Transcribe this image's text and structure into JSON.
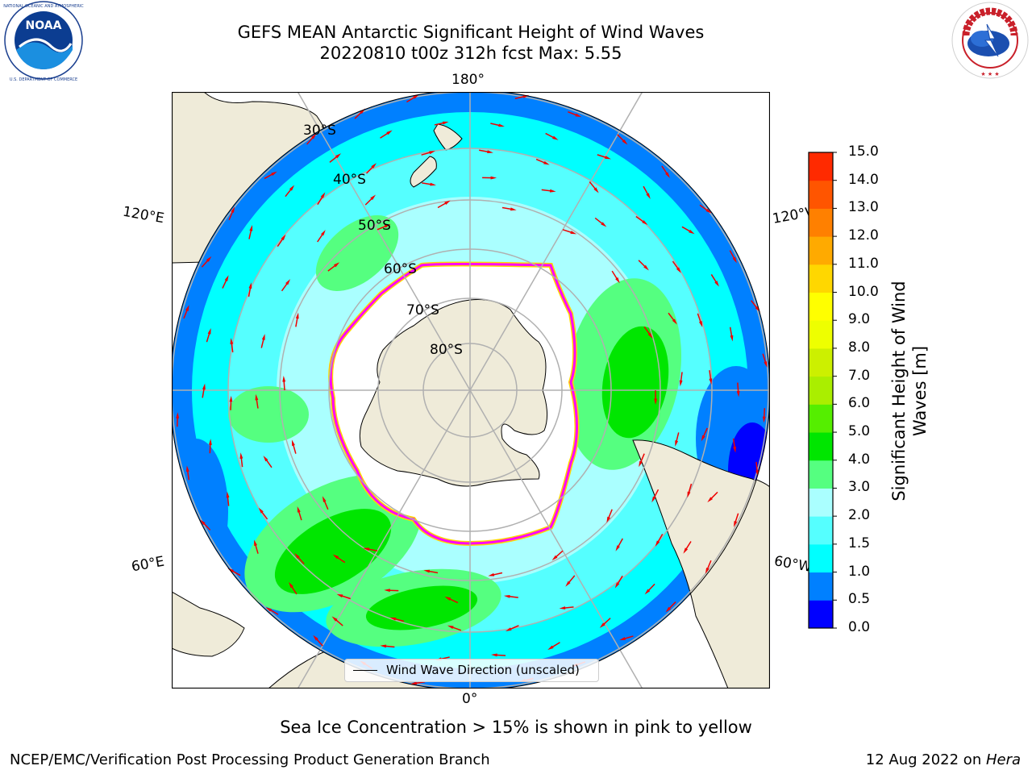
{
  "header": {
    "title_line1": "GEFS MEAN Antarctic Significant Height of Wind Waves",
    "title_line2": "20220810 t00z 312h fcst   Max: 5.55",
    "left_logo": {
      "name": "noaa-logo",
      "text": "NOAA",
      "ring_text": "NATIONAL OCEANIC AND ATMOSPHERIC ADMINISTRATION · U.S. DEPARTMENT OF COMMERCE"
    },
    "right_logo": {
      "name": "nws-logo",
      "ring_text": "NATIONAL WEATHER SERVICE"
    }
  },
  "map": {
    "projection": "south-polar-stereographic",
    "latitude_labels": [
      "30°S",
      "40°S",
      "50°S",
      "60°S",
      "70°S",
      "80°S"
    ],
    "longitude_labels": {
      "top": "180°",
      "bottom": "0°",
      "upper_left": "120°E",
      "lower_left": "60°E",
      "upper_right": "120°W",
      "lower_right": "60°W"
    },
    "colors": {
      "land": "#efebd9",
      "coastline": "#000000",
      "gridlines": "#b0b0b0",
      "ice_edge": [
        "#ff00ff",
        "#ffd700"
      ],
      "arrow": "#ee0000"
    },
    "field": {
      "variable": "Significant Height of Wind Waves",
      "units": "m",
      "max": 5.55,
      "approx_regions": [
        {
          "area": "Southern Indian Ocean (0°–90°E, 40°S–55°S)",
          "range_m": [
            3.0,
            5.0
          ]
        },
        {
          "area": "South Pacific (120°W–90°W, 45°S–60°S)",
          "range_m": [
            3.0,
            5.0
          ]
        },
        {
          "area": "Central South Pacific (160°E–140°W)",
          "range_m": [
            1.5,
            3.0
          ]
        },
        {
          "area": "Mid-latitudes near 30°S",
          "range_m": [
            0.5,
            1.5
          ]
        },
        {
          "area": "Southeast Pacific off South America",
          "range_m": [
            0.0,
            1.0
          ]
        }
      ]
    },
    "sea_ice_shown": true
  },
  "colorbar": {
    "title_line1": "Significant Height of Wind",
    "title_line2": "Waves [m]",
    "ticks": [
      "0.0",
      "0.5",
      "1.0",
      "1.5",
      "2.0",
      "3.0",
      "4.0",
      "5.0",
      "6.0",
      "7.0",
      "8.0",
      "9.0",
      "10.0",
      "11.0",
      "12.0",
      "13.0",
      "14.0",
      "15.0"
    ],
    "colors": [
      "#0000ff",
      "#0080ff",
      "#00ffff",
      "#55ffff",
      "#aaffff",
      "#55ff80",
      "#00e600",
      "#55ee00",
      "#aaee00",
      "#ccf000",
      "#eeff00",
      "#ffff00",
      "#ffd700",
      "#ffaa00",
      "#ff8000",
      "#ff5500",
      "#ff2a00",
      "#ff0000"
    ]
  },
  "legend": {
    "label": "Wind Wave Direction (unscaled)"
  },
  "notes": {
    "sea_ice": "Sea Ice Concentration > 15% is shown in pink to yellow"
  },
  "footer": {
    "left": "NCEP/EMC/Verification Post Processing Product Generation Branch",
    "right_prefix": "12 Aug 2022 on ",
    "right_host": "Hera"
  }
}
